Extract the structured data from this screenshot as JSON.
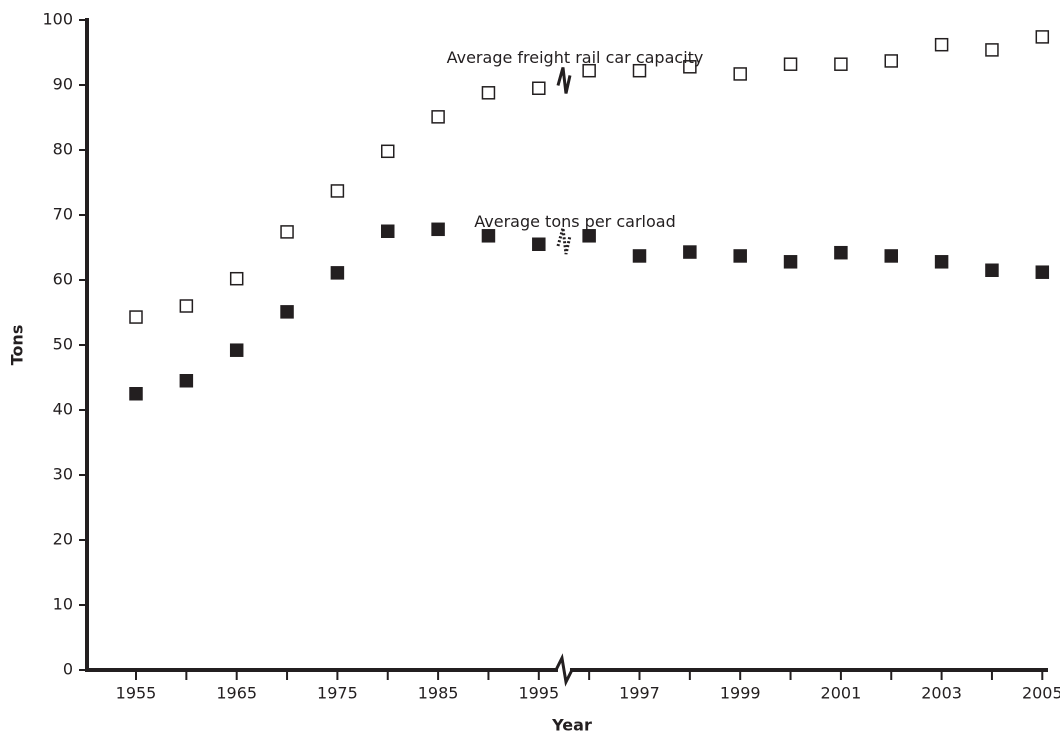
{
  "chart_data": {
    "type": "line",
    "x_label": "Year",
    "y_label": "Tons",
    "categories": [
      "1955",
      null,
      "1965",
      null,
      "1975",
      null,
      "1985",
      null,
      "1995",
      null,
      "1997",
      null,
      "1999",
      null,
      "2001",
      null,
      "2003",
      null,
      "2005"
    ],
    "series": [
      {
        "name": "Average freight rail car capacity",
        "color": "#231f20",
        "dash": "solid",
        "marker": "open",
        "values": [
          54.3,
          56,
          60.2,
          67.4,
          73.7,
          79.8,
          85.1,
          88.8,
          89.5,
          92.2,
          92.2,
          92.8,
          91.7,
          93.2,
          93.2,
          93.7,
          96.2,
          95.4,
          97.4
        ]
      },
      {
        "name": "Average tons per carload",
        "color": "#231f20",
        "dash": "dotted",
        "marker": "filled",
        "values": [
          42.5,
          44.5,
          49.2,
          55.1,
          61.1,
          67.5,
          67.8,
          66.8,
          65.5,
          66.8,
          63.7,
          64.3,
          63.7,
          62.8,
          64.2,
          63.7,
          62.8,
          61.5,
          61.2
        ]
      }
    ],
    "ylim": [
      0,
      100
    ],
    "yticks": [
      0,
      10,
      20,
      30,
      40,
      50,
      60,
      70,
      80,
      90,
      100
    ],
    "grid": false
  }
}
